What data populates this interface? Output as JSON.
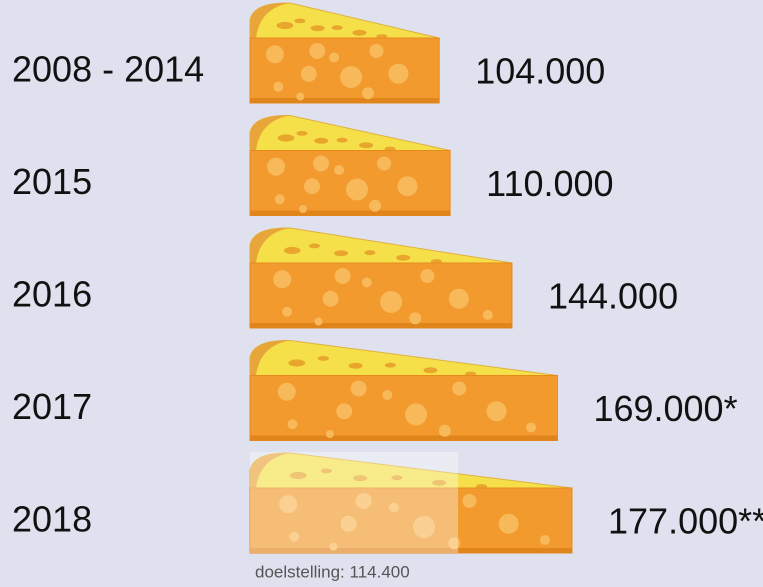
{
  "chart_data": {
    "type": "pictogram-bar",
    "categories": [
      "2008 - 2014",
      "2015",
      "2016",
      "2017",
      "2018"
    ],
    "values": [
      104000,
      110000,
      144000,
      169000,
      177000
    ],
    "value_labels": [
      "104.000",
      "110.000",
      "144.000",
      "169.000*",
      "177.000**"
    ],
    "color": "#f29a2e",
    "annotation": {
      "text": "doelstelling: 114.400",
      "value": 114400
    }
  }
}
